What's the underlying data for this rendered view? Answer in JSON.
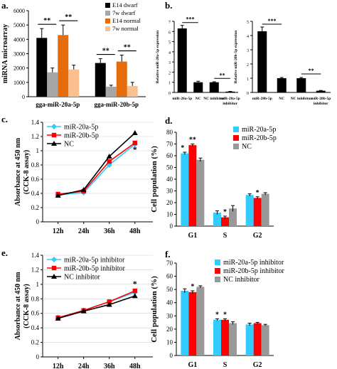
{
  "panel_labels": [
    "a.",
    "b.",
    "c.",
    "d.",
    "e.",
    "f."
  ],
  "chart_data": [
    {
      "panel": "a.",
      "type": "bar",
      "ylabel": "miRNA microarray",
      "ylim": [
        0,
        6000
      ],
      "yticks": [
        0,
        1000,
        2000,
        3000,
        4000,
        5000,
        6000
      ],
      "categories": [
        "gga-miR-20a-5p",
        "gga-miR-20b-5p"
      ],
      "series": [
        {
          "name": "E14 dwarf",
          "color": "#000000",
          "values": [
            4100,
            2350
          ],
          "errors": [
            650,
            300
          ]
        },
        {
          "name": "7w dwarf",
          "color": "#a6a6a6",
          "values": [
            1700,
            700
          ],
          "errors": [
            300,
            100
          ]
        },
        {
          "name": "E14 normal",
          "color": "#e46c0a",
          "values": [
            4300,
            2450
          ],
          "errors": [
            700,
            450
          ]
        },
        {
          "name": "7w normal",
          "color": "#fac090",
          "values": [
            1900,
            750
          ],
          "errors": [
            300,
            250
          ]
        }
      ],
      "significance": [
        "**",
        "**",
        "**",
        "**"
      ],
      "legend": "top-right"
    },
    {
      "panel": "b.",
      "type": "bar",
      "ylabel": "Relative miR-20a-5p expression",
      "ylim": [
        0,
        7
      ],
      "yticks": [
        0,
        1,
        2,
        3,
        4,
        5,
        6,
        7
      ],
      "categories": [
        "miR-20a-5p",
        "NC",
        "NC inhibitor",
        "miR-20a-5p inhibitor"
      ],
      "values": [
        6.3,
        1.0,
        1.0,
        0.08
      ],
      "errors": [
        0.3,
        0.1,
        0.05,
        0.02
      ],
      "significance": [
        "***",
        "**"
      ]
    },
    {
      "panel": "b.",
      "type": "bar",
      "ylabel": "Relative miR-20b-5p expression",
      "ylim": [
        0,
        5
      ],
      "yticks": [
        0,
        1,
        2,
        3,
        4,
        5
      ],
      "categories": [
        "miR-20b-5p",
        "NC",
        "NC inhibitor",
        "miR-20b-5p inhibitor"
      ],
      "values": [
        4.3,
        1.0,
        1.0,
        0.12
      ],
      "errors": [
        0.3,
        0.05,
        0.05,
        0.02
      ],
      "significance": [
        "***",
        "**"
      ]
    },
    {
      "panel": "c.",
      "type": "line",
      "ylabel": "Absorbance at 450 nm (CCK-8 assay)",
      "ylim": [
        0,
        1.4
      ],
      "yticks": [
        0,
        0.2,
        0.4,
        0.6,
        0.8,
        1,
        1.2,
        1.4
      ],
      "categories": [
        "12h",
        "24h",
        "36h",
        "48h"
      ],
      "series": [
        {
          "name": "miR-20a-5p",
          "color": "#33ccff",
          "marker": "diamond",
          "values": [
            0.38,
            0.41,
            0.8,
            1.09
          ]
        },
        {
          "name": "miR-20b-5p",
          "color": "#ff0000",
          "marker": "square",
          "values": [
            0.39,
            0.43,
            0.85,
            1.11
          ]
        },
        {
          "name": "NC",
          "color": "#000000",
          "marker": "triangle",
          "values": [
            0.37,
            0.45,
            0.92,
            1.25
          ]
        }
      ],
      "annotations": [
        "*"
      ],
      "legend": "top-left"
    },
    {
      "panel": "d.",
      "type": "bar",
      "ylabel": "Cell population (%)",
      "ylim": [
        0,
        80
      ],
      "yticks": [
        0,
        10,
        20,
        30,
        40,
        50,
        60,
        70,
        80
      ],
      "categories": [
        "G1",
        "S",
        "G2"
      ],
      "series": [
        {
          "name": "miR-20a-5p",
          "color": "#33ccff",
          "values": [
            62,
            11.5,
            26.5
          ],
          "errors": [
            1,
            1.5,
            1
          ]
        },
        {
          "name": "miR-20b-5p",
          "color": "#ff0000",
          "values": [
            69,
            7.5,
            24
          ],
          "errors": [
            1,
            1,
            1
          ]
        },
        {
          "name": "NC",
          "color": "#999999",
          "values": [
            56.5,
            15,
            27.5
          ],
          "errors": [
            1.5,
            2.5,
            1
          ]
        }
      ],
      "significance": [
        "*",
        "**",
        "*",
        "*"
      ],
      "legend": "top-right"
    },
    {
      "panel": "e.",
      "type": "line",
      "ylabel": "Absorbance at 450 nm (CCK-8 assay)",
      "ylim": [
        0,
        1.4
      ],
      "yticks": [
        0,
        0.2,
        0.4,
        0.6,
        0.8,
        1,
        1.2,
        1.4
      ],
      "categories": [
        "12h",
        "24h",
        "36h",
        "48h"
      ],
      "series": [
        {
          "name": "miR-20a-5p inhibitor",
          "color": "#33ccff",
          "marker": "diamond",
          "values": [
            0.54,
            0.64,
            0.76,
            0.89
          ]
        },
        {
          "name": "miR-20b-5p inhibitor",
          "color": "#ff0000",
          "marker": "square",
          "values": [
            0.54,
            0.64,
            0.76,
            0.91
          ]
        },
        {
          "name": "NC inhibitor",
          "color": "#000000",
          "marker": "triangle",
          "values": [
            0.53,
            0.63,
            0.72,
            0.84
          ]
        }
      ],
      "annotations": [
        "*"
      ],
      "legend": "top-left"
    },
    {
      "panel": "f.",
      "type": "bar",
      "ylabel": "Cell population (%)",
      "ylim": [
        0,
        70
      ],
      "yticks": [
        0,
        10,
        20,
        30,
        40,
        50,
        60,
        70
      ],
      "categories": [
        "G1",
        "S",
        "G2"
      ],
      "series": [
        {
          "name": "miR-20a-5p inhibitor",
          "color": "#33ccff",
          "values": [
            49,
            27,
            23.5
          ],
          "errors": [
            1.5,
            0.8,
            1
          ]
        },
        {
          "name": "miR-20b-5p inhibitor",
          "color": "#ff0000",
          "values": [
            48,
            27,
            24.5
          ],
          "errors": [
            1,
            0.8,
            0.6
          ]
        },
        {
          "name": "NC inhibitor",
          "color": "#999999",
          "values": [
            52,
            24.5,
            23
          ],
          "errors": [
            0.8,
            1,
            0.6
          ]
        }
      ],
      "significance": [
        "*",
        "*",
        "*"
      ],
      "legend": "top-right"
    }
  ]
}
